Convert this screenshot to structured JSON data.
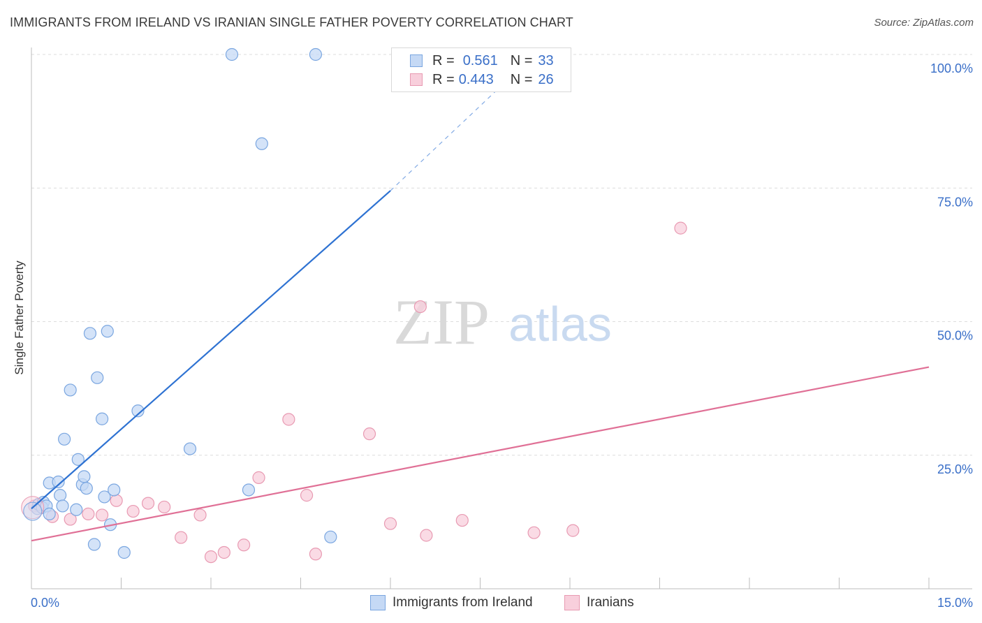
{
  "title": "IMMIGRANTS FROM IRELAND VS IRANIAN SINGLE FATHER POVERTY CORRELATION CHART",
  "source": "Source: ZipAtlas.com",
  "watermark": {
    "zip": "ZIP",
    "atlas": "atlas"
  },
  "colors": {
    "blue_fill": "#c5d9f5",
    "blue_stroke": "#7aa6e0",
    "blue_line": "#2e72d2",
    "pink_fill": "#f8cfdc",
    "pink_stroke": "#e89ab2",
    "pink_line": "#e07096",
    "tick_label": "#3a6fc8",
    "grid": "#dcdcdc"
  },
  "legend": {
    "series": [
      {
        "r_label": "R =",
        "r_value": "0.561",
        "n_label": "N =",
        "n_value": "33"
      },
      {
        "r_label": "R =",
        "r_value": "0.443",
        "n_label": "N =",
        "n_value": "26"
      }
    ]
  },
  "bottom_legend": {
    "ireland": "Immigrants from Ireland",
    "iranians": "Iranians"
  },
  "chart_data": {
    "type": "scatter",
    "title": "IMMIGRANTS FROM IRELAND VS IRANIAN SINGLE FATHER POVERTY CORRELATION CHART",
    "xlabel": "",
    "ylabel": "Single Father Poverty",
    "xlim": [
      0,
      15
    ],
    "ylim": [
      0,
      100
    ],
    "x_tick_labels": [
      "0.0%",
      "15.0%"
    ],
    "y_ticks": [
      25,
      50,
      75,
      100
    ],
    "y_tick_labels": [
      "25.0%",
      "50.0%",
      "75.0%",
      "100.0%"
    ],
    "grid": true,
    "series": [
      {
        "name": "Immigrants from Ireland",
        "r": 0.561,
        "n": 33,
        "points": [
          [
            0.1,
            15
          ],
          [
            0.12,
            15.8
          ],
          [
            0.2,
            16.2
          ],
          [
            0.18,
            15.2
          ],
          [
            0.25,
            15.5
          ],
          [
            0.3,
            14
          ],
          [
            0.3,
            19.8
          ],
          [
            0.45,
            20
          ],
          [
            0.48,
            17.5
          ],
          [
            0.52,
            15.5
          ],
          [
            0.55,
            28
          ],
          [
            0.65,
            37.2
          ],
          [
            0.75,
            14.8
          ],
          [
            0.78,
            24.2
          ],
          [
            0.85,
            19.5
          ],
          [
            0.88,
            21
          ],
          [
            0.92,
            18.8
          ],
          [
            0.98,
            47.8
          ],
          [
            1.05,
            8.3
          ],
          [
            1.1,
            39.5
          ],
          [
            1.18,
            31.8
          ],
          [
            1.22,
            17.2
          ],
          [
            1.27,
            48.2
          ],
          [
            1.32,
            12
          ],
          [
            1.38,
            18.5
          ],
          [
            1.55,
            6.8
          ],
          [
            1.78,
            33.3
          ],
          [
            2.65,
            26.2
          ],
          [
            3.35,
            100
          ],
          [
            3.63,
            18.5
          ],
          [
            3.85,
            83.3
          ],
          [
            4.75,
            100
          ],
          [
            5.0,
            9.7
          ]
        ],
        "trend": {
          "x": [
            0.0,
            6.0
          ],
          "y": [
            15.0,
            74.5
          ],
          "dashed_to": [
            8.2,
            97.8
          ]
        }
      },
      {
        "name": "Iranians",
        "r": 0.443,
        "n": 26,
        "points": [
          [
            0.05,
            15.5
          ],
          [
            0.35,
            13.5
          ],
          [
            0.65,
            13
          ],
          [
            0.95,
            14
          ],
          [
            1.18,
            13.8
          ],
          [
            1.42,
            16.5
          ],
          [
            1.7,
            14.5
          ],
          [
            1.95,
            16
          ],
          [
            2.22,
            15.3
          ],
          [
            2.5,
            9.6
          ],
          [
            2.82,
            13.8
          ],
          [
            3.0,
            6
          ],
          [
            3.22,
            6.8
          ],
          [
            3.55,
            8.2
          ],
          [
            3.8,
            20.8
          ],
          [
            4.3,
            31.7
          ],
          [
            4.6,
            17.5
          ],
          [
            4.75,
            6.5
          ],
          [
            5.65,
            29
          ],
          [
            6.0,
            12.2
          ],
          [
            6.5,
            52.8
          ],
          [
            6.6,
            10
          ],
          [
            7.2,
            12.8
          ],
          [
            8.4,
            10.5
          ],
          [
            9.05,
            10.9
          ],
          [
            10.85,
            67.5
          ]
        ],
        "trend": {
          "x": [
            0.0,
            15.0
          ],
          "y": [
            9.0,
            41.5
          ]
        }
      }
    ]
  }
}
